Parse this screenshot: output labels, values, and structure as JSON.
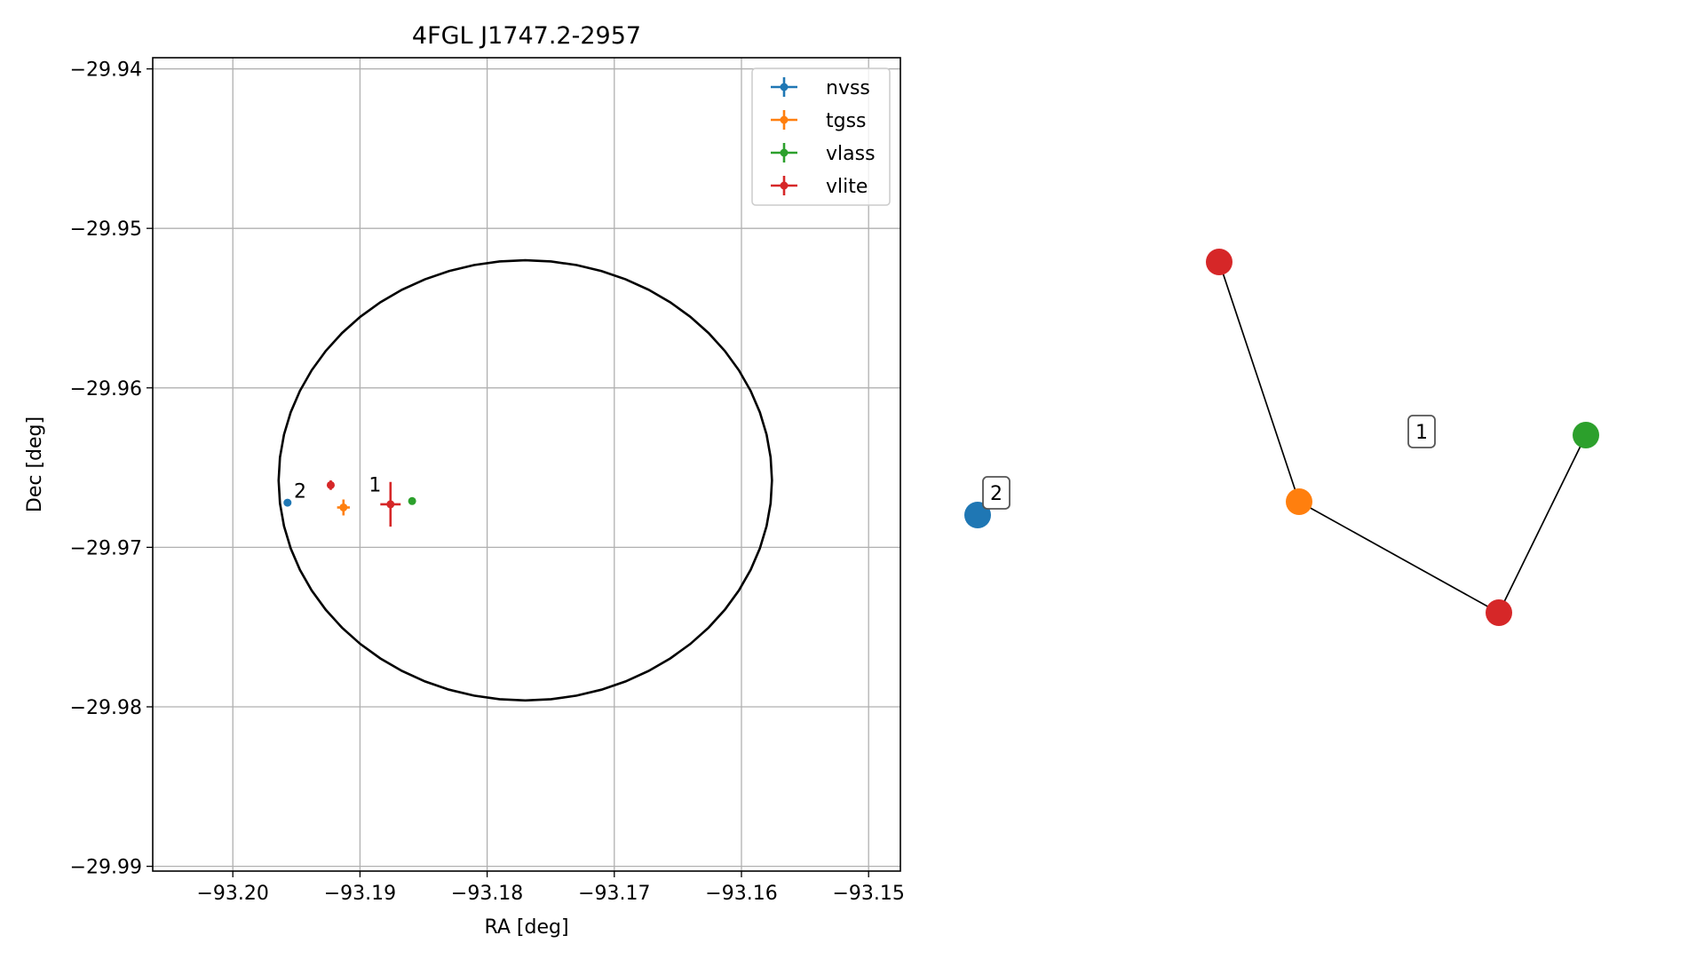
{
  "chart_data": [
    {
      "type": "scatter",
      "title": "4FGL J1747.2-2957",
      "xlabel": "RA [deg]",
      "ylabel": "Dec [deg]",
      "xlim": [
        -93.2063,
        -93.1475
      ],
      "ylim": [
        -29.9903,
        -29.9393
      ],
      "xticks": [
        -93.2,
        -93.19,
        -93.18,
        -93.17,
        -93.16,
        -93.15
      ],
      "yticks": [
        -29.94,
        -29.95,
        -29.96,
        -29.97,
        -29.98,
        -29.99
      ],
      "xtick_labels": [
        "−93.20",
        "−93.19",
        "−93.18",
        "−93.17",
        "−93.16",
        "−93.15"
      ],
      "ytick_labels": [
        "−29.94",
        "−29.95",
        "−29.96",
        "−29.97",
        "−29.98",
        "−29.99"
      ],
      "grid": true,
      "legend_position": "upper-right",
      "circle": {
        "center": [
          -93.177,
          -29.9658
        ],
        "rx": 0.0194,
        "ry": 0.0138,
        "color": "#000000"
      },
      "series": [
        {
          "name": "nvss",
          "color": "#1f77b4",
          "points": [
            {
              "x": -93.1957,
              "y": -29.9672,
              "xerr": 0.0002,
              "yerr": 0.0002
            }
          ]
        },
        {
          "name": "tgss",
          "color": "#ff7f0e",
          "points": [
            {
              "x": -93.1913,
              "y": -29.9675,
              "xerr": 0.0005,
              "yerr": 0.0005
            }
          ]
        },
        {
          "name": "vlass",
          "color": "#2ca02c",
          "points": [
            {
              "x": -93.1859,
              "y": -29.9671,
              "xerr": 0.0001,
              "yerr": 0.0001
            }
          ]
        },
        {
          "name": "vlite",
          "color": "#d62728",
          "points": [
            {
              "x": -93.1923,
              "y": -29.9661,
              "xerr": 0.0002,
              "yerr": 0.0003
            },
            {
              "x": -93.1876,
              "y": -29.9673,
              "xerr": 0.0008,
              "yerr": 0.0014
            }
          ]
        }
      ],
      "annotations": [
        {
          "text": "2",
          "x": -93.1952,
          "y": -29.9669
        },
        {
          "text": "1",
          "x": -93.1893,
          "y": -29.9665
        }
      ]
    },
    {
      "type": "network",
      "nodes": [
        {
          "id": "a",
          "color": "#1f77b4"
        },
        {
          "id": "b",
          "color": "#d62728"
        },
        {
          "id": "c",
          "color": "#ff7f0e"
        },
        {
          "id": "d",
          "color": "#d62728"
        },
        {
          "id": "e",
          "color": "#2ca02c"
        }
      ],
      "edges": [
        [
          "b",
          "c"
        ],
        [
          "c",
          "d"
        ],
        [
          "d",
          "e"
        ]
      ],
      "component_labels": [
        {
          "text": "2"
        },
        {
          "text": "1"
        }
      ]
    }
  ]
}
